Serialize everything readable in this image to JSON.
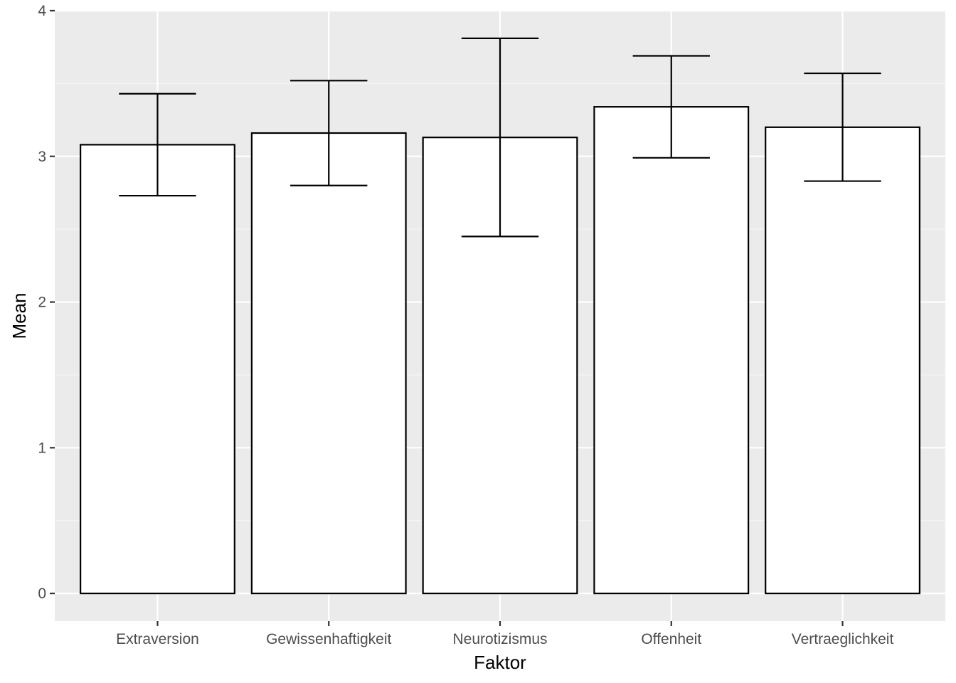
{
  "chart_data": {
    "type": "bar",
    "title": "",
    "xlabel": "Faktor",
    "ylabel": "Mean",
    "categories": [
      "Extraversion",
      "Gewissenhaftigkeit",
      "Neurotizismus",
      "Offenheit",
      "Vertraeglichkeit"
    ],
    "values": [
      3.08,
      3.16,
      3.13,
      3.34,
      3.2
    ],
    "error_low": [
      2.73,
      2.8,
      2.45,
      2.99,
      2.83
    ],
    "error_high": [
      3.43,
      3.52,
      3.81,
      3.69,
      3.57
    ],
    "ylim": [
      -0.19,
      4.0
    ],
    "yticks": [
      0,
      1,
      2,
      3,
      4
    ],
    "grid": true,
    "legend": "none",
    "colors": {
      "panel_background": "#ebebeb",
      "grid_major": "#ffffff",
      "grid_minor": "#f5f5f5",
      "bar_fill": "#ffffff",
      "bar_outline": "#000000",
      "errorbar": "#000000",
      "tick_mark": "#333333",
      "tick_text": "#4d4d4d",
      "axis_title_text": "#000000"
    }
  }
}
